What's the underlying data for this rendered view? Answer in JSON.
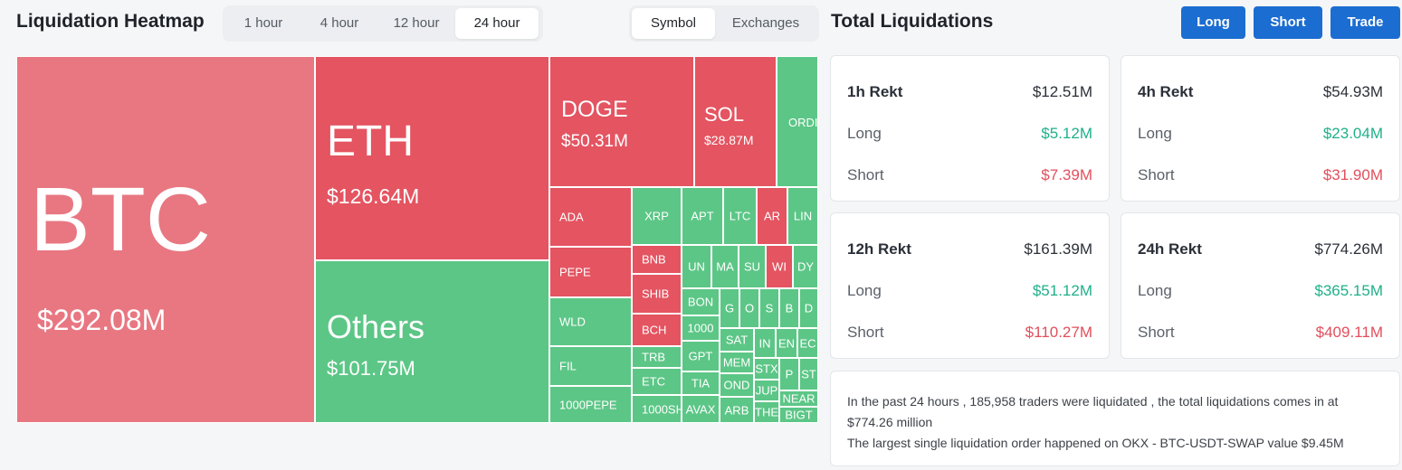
{
  "heatmap": {
    "title": "Liquidation Heatmap",
    "time_tabs": [
      "1 hour",
      "4 hour",
      "12 hour",
      "24 hour"
    ],
    "active_time_tab": "24 hour",
    "view_tabs": [
      "Symbol",
      "Exchanges"
    ],
    "active_view_tab": "Symbol",
    "cells": {
      "btc": {
        "symbol": "BTC",
        "value": "$292.08M"
      },
      "eth": {
        "symbol": "ETH",
        "value": "$126.64M"
      },
      "others": {
        "symbol": "Others",
        "value": "$101.75M"
      },
      "doge": {
        "symbol": "DOGE",
        "value": "$50.31M"
      },
      "sol": {
        "symbol": "SOL",
        "value": "$28.87M"
      },
      "ordi": {
        "symbol": "ORDI"
      },
      "ada": {
        "symbol": "ADA"
      },
      "xrp": {
        "symbol": "XRP"
      },
      "apt": {
        "symbol": "APT"
      },
      "ltc": {
        "symbol": "LTC"
      },
      "ar": {
        "symbol": "AR"
      },
      "lin": {
        "symbol": "LIN"
      },
      "pepe": {
        "symbol": "PEPE"
      },
      "bnb": {
        "symbol": "BNB"
      },
      "un": {
        "symbol": "UN"
      },
      "ma": {
        "symbol": "MA"
      },
      "su": {
        "symbol": "SU"
      },
      "wi": {
        "symbol": "WI"
      },
      "dy": {
        "symbol": "DY"
      },
      "shib": {
        "symbol": "SHIB"
      },
      "bon": {
        "symbol": "BON"
      },
      "g": {
        "symbol": "G"
      },
      "o": {
        "symbol": "O"
      },
      "s": {
        "symbol": "S"
      },
      "b": {
        "symbol": "B"
      },
      "d": {
        "symbol": "D"
      },
      "wld": {
        "symbol": "WLD"
      },
      "bch": {
        "symbol": "BCH"
      },
      "1000": {
        "symbol": "1000"
      },
      "sat": {
        "symbol": "SAT"
      },
      "in": {
        "symbol": "IN"
      },
      "en": {
        "symbol": "EN"
      },
      "ec": {
        "symbol": "EC"
      },
      "trb": {
        "symbol": "TRB"
      },
      "gpt": {
        "symbol": "GPT"
      },
      "mem": {
        "symbol": "MEM"
      },
      "stx": {
        "symbol": "STX"
      },
      "p": {
        "symbol": "P"
      },
      "st": {
        "symbol": "ST"
      },
      "fil": {
        "symbol": "FIL"
      },
      "etc": {
        "symbol": "ETC"
      },
      "tia": {
        "symbol": "TIA"
      },
      "ond": {
        "symbol": "OND"
      },
      "jup": {
        "symbol": "JUP"
      },
      "near": {
        "symbol": "NEAR"
      },
      "1000pepe": {
        "symbol": "1000PEPE"
      },
      "1000sh": {
        "symbol": "1000SH"
      },
      "avax": {
        "symbol": "AVAX"
      },
      "arb": {
        "symbol": "ARB"
      },
      "the": {
        "symbol": "THE"
      },
      "bigt": {
        "symbol": "BIGT"
      }
    }
  },
  "totals": {
    "title": "Total Liquidations",
    "buttons": {
      "long": "Long",
      "short": "Short",
      "trade": "Trade"
    },
    "long_label": "Long",
    "short_label": "Short",
    "cards": [
      {
        "label": "1h Rekt",
        "total": "$12.51M",
        "long": "$5.12M",
        "short": "$7.39M"
      },
      {
        "label": "4h Rekt",
        "total": "$54.93M",
        "long": "$23.04M",
        "short": "$31.90M"
      },
      {
        "label": "12h Rekt",
        "total": "$161.39M",
        "long": "$51.12M",
        "short": "$110.27M"
      },
      {
        "label": "24h Rekt",
        "total": "$774.26M",
        "long": "$365.15M",
        "short": "$409.11M"
      }
    ],
    "summary_line1": "In the past 24 hours , 185,958 traders were liquidated , the total liquidations comes in at $774.26 million",
    "summary_line2": "The largest single liquidation order happened on OKX - BTC-USDT-SWAP value $9.45M"
  },
  "colors": {
    "long": "#5cc686",
    "short": "#e45461",
    "btc": "#e87781",
    "button": "#1b6dd1"
  }
}
